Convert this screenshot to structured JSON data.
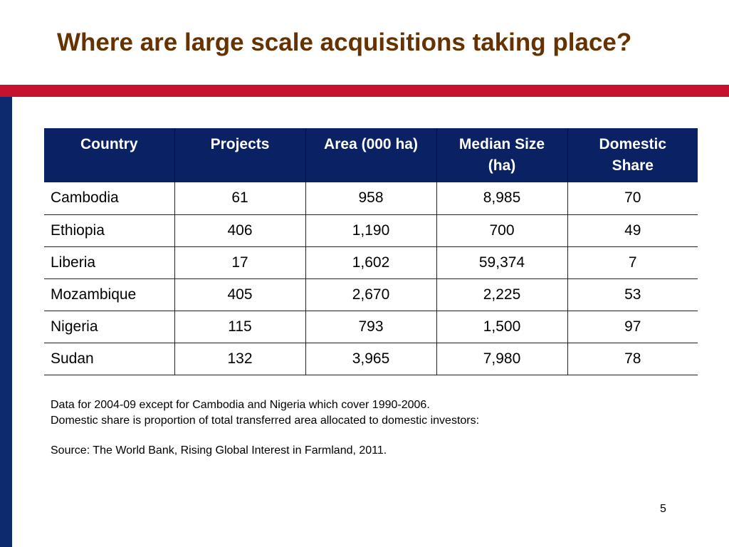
{
  "title": "Where are large scale acquisitions taking place?",
  "colors": {
    "title": "#663300",
    "band": "#c41230",
    "sidebar": "#0d2a6e",
    "header": "#0a2263"
  },
  "table": {
    "headers": [
      "Country",
      "Projects",
      "Area (000 ha)",
      "Median Size (ha)",
      "Domestic Share"
    ],
    "rows": [
      [
        "Cambodia",
        "61",
        "958",
        "8,985",
        "70"
      ],
      [
        "Ethiopia",
        "406",
        "1,190",
        "700",
        "49"
      ],
      [
        "Liberia",
        "17",
        "1,602",
        "59,374",
        "7"
      ],
      [
        "Mozambique",
        "405",
        "2,670",
        "2,225",
        "53"
      ],
      [
        "Nigeria",
        "115",
        "793",
        "1,500",
        "97"
      ],
      [
        "Sudan",
        "132",
        "3,965",
        "7,980",
        "78"
      ]
    ]
  },
  "notes": {
    "line1": "Data for 2004-09 except for Cambodia and Nigeria which cover 1990-2006.",
    "line2": "Domestic share is proportion of total transferred area allocated to domestic investors:",
    "source": "Source: The World Bank, Rising Global Interest in Farmland, 2011."
  },
  "page_number": "5"
}
